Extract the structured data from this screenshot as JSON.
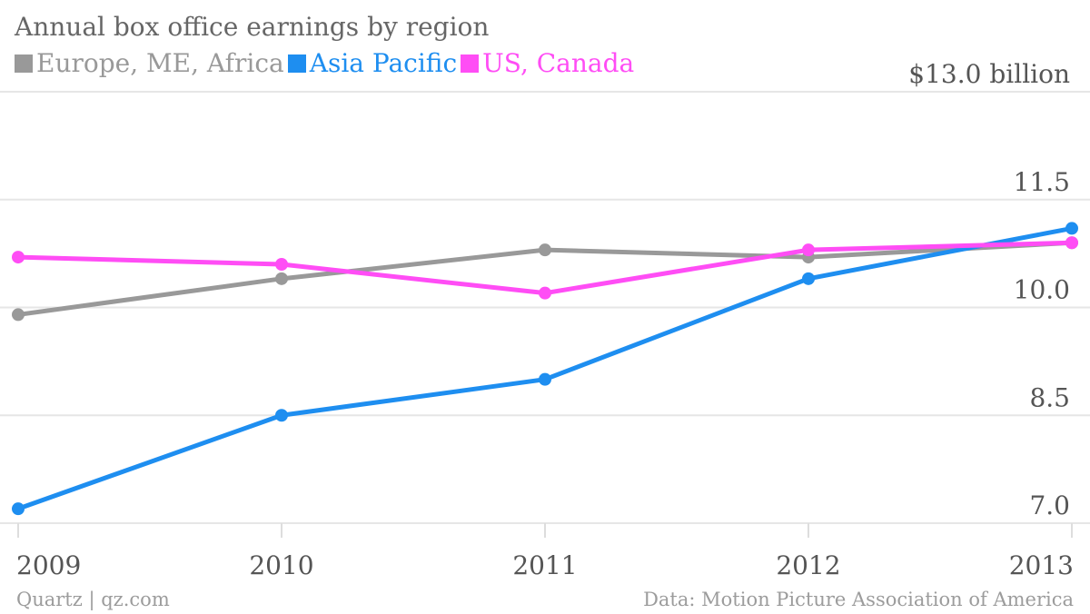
{
  "chart_data": {
    "type": "line",
    "title": "Annual box office earnings by region",
    "x": [
      "2009",
      "2010",
      "2011",
      "2012",
      "2013"
    ],
    "y_ticks": [
      "$13.0 billion",
      "11.5",
      "10.0",
      "8.5",
      "7.0"
    ],
    "ylim": [
      7.0,
      13.0
    ],
    "grid": true,
    "legend_position": "top-left",
    "series": [
      {
        "name": "Europe, ME, Africa",
        "color": "#999999",
        "values": [
          9.9,
          10.4,
          10.8,
          10.7,
          10.9
        ]
      },
      {
        "name": "Asia Pacific",
        "color": "#1e8ef0",
        "values": [
          7.2,
          8.5,
          9.0,
          10.4,
          11.1
        ]
      },
      {
        "name": "US, Canada",
        "color": "#ff4df5",
        "values": [
          10.7,
          10.6,
          10.2,
          10.8,
          10.9
        ]
      }
    ]
  },
  "footer": {
    "source_left": "Quartz | qz.com",
    "source_right": "Data: Motion Picture Association of America"
  }
}
